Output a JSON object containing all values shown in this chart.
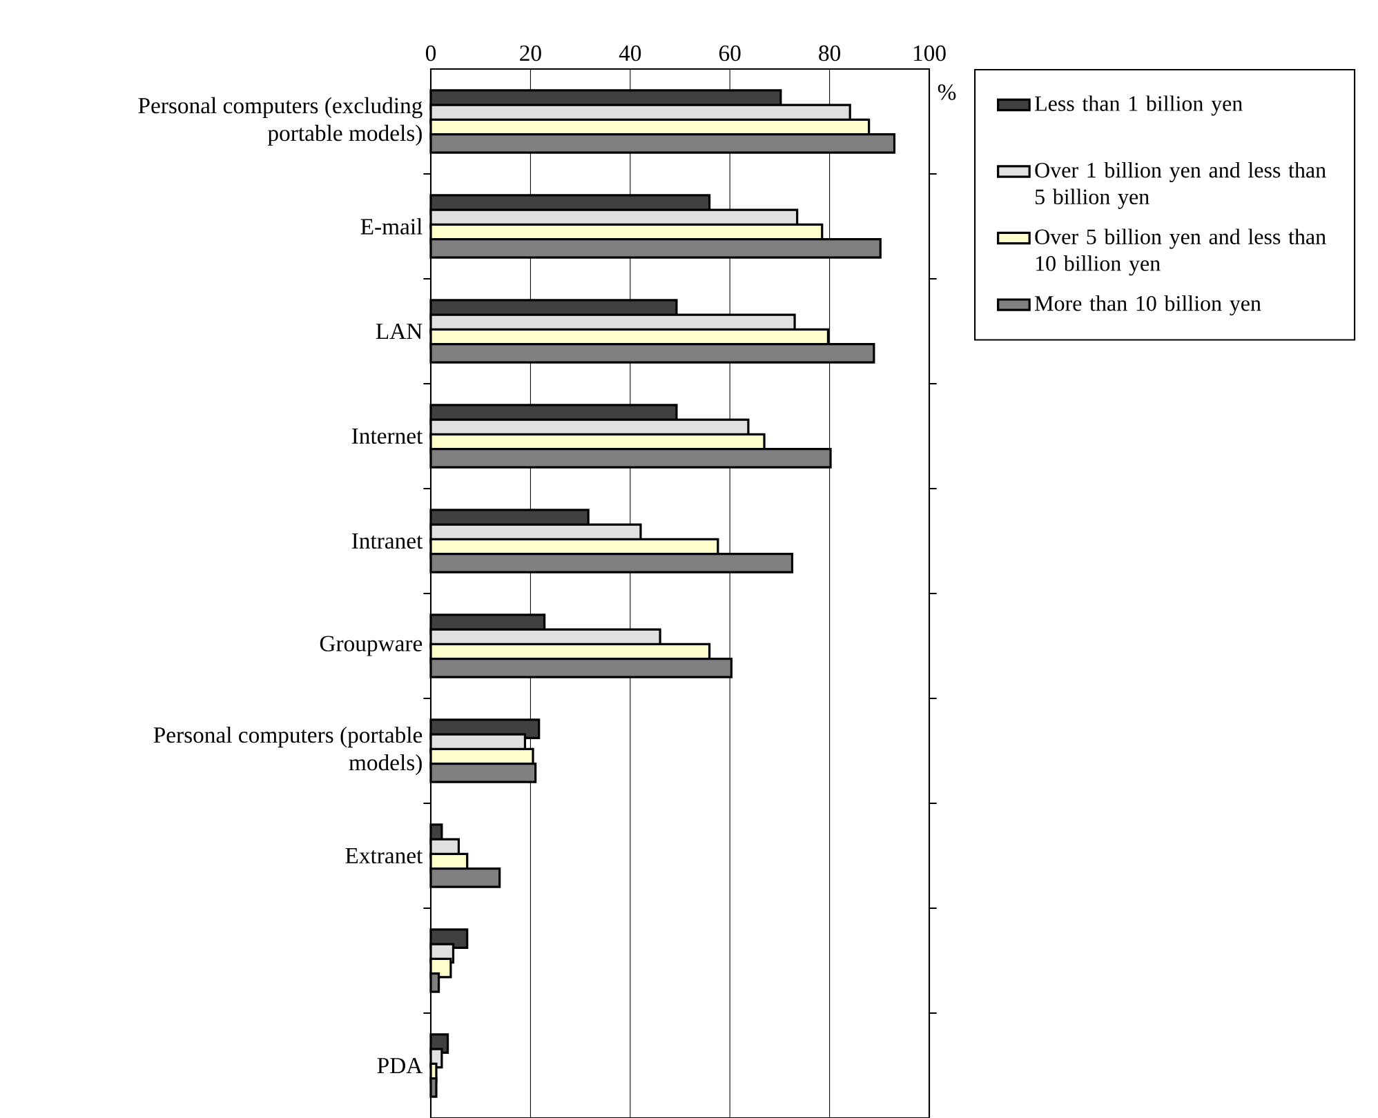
{
  "chart_data": {
    "type": "bar",
    "orientation": "horizontal",
    "xlabel": "%",
    "categories": [
      "Personal computers (excluding portable models)",
      "E-mail",
      "LAN",
      "Internet",
      "Intranet",
      "Groupware",
      "Personal computers (portable models)",
      "Extranet",
      null,
      "PDA"
    ],
    "series": [
      {
        "name": "Less than 1 billion yen",
        "color": "#404040",
        "values": [
          70.2,
          55.9,
          49.3,
          49.3,
          31.6,
          22.8,
          21.7,
          2.2,
          7.3,
          3.4
        ]
      },
      {
        "name": "Over 1 billion yen and less than 5 billion yen",
        "color": "#e0e0e0",
        "values": [
          84.1,
          73.5,
          73.0,
          63.7,
          42.1,
          46.0,
          18.9,
          5.6,
          4.5,
          2.2
        ]
      },
      {
        "name": "Over 5 billion yen and less than 10 billion yen",
        "color": "#ffffcc",
        "values": [
          87.9,
          78.5,
          79.7,
          66.9,
          57.6,
          55.9,
          20.5,
          7.3,
          4.0,
          1.1
        ]
      },
      {
        "name": "More than 10 billion yen",
        "color": "#808080",
        "values": [
          93.0,
          90.2,
          88.9,
          80.2,
          72.5,
          60.3,
          21.0,
          13.8,
          1.6,
          1.1
        ]
      }
    ],
    "xlim": [
      0,
      100
    ],
    "xticks": [
      0,
      20,
      40,
      60,
      80,
      100
    ],
    "grid": "x",
    "legend": "right"
  }
}
